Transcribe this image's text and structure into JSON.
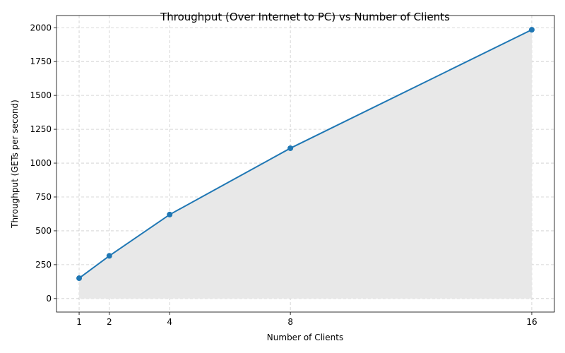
{
  "chart_data": {
    "type": "line",
    "title": "Throughput (Over Internet to PC) vs Number of Clients",
    "xlabel": "Number of Clients",
    "ylabel": "Throughput (GETs per second)",
    "x": [
      1,
      2,
      4,
      8,
      16
    ],
    "xticks": [
      "1",
      "2",
      "4",
      "8",
      "16"
    ],
    "xlim": [
      0.25,
      16.75
    ],
    "ylim": [
      -100,
      2090
    ],
    "yticks": [
      "0",
      "250",
      "500",
      "750",
      "1000",
      "1250",
      "1500",
      "1750",
      "2000"
    ],
    "series": [
      {
        "values": [
          150,
          315,
          620,
          1110,
          1985
        ],
        "color": "#1f77b4"
      }
    ],
    "fill_color": "#e8e8e8",
    "grid": true,
    "marker": "circle"
  }
}
